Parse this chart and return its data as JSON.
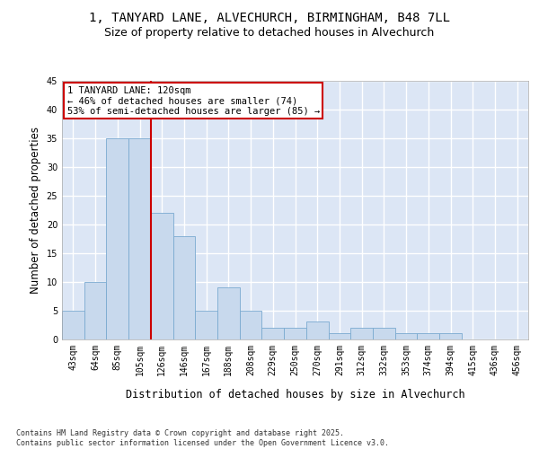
{
  "title_line1": "1, TANYARD LANE, ALVECHURCH, BIRMINGHAM, B48 7LL",
  "title_line2": "Size of property relative to detached houses in Alvechurch",
  "xlabel": "Distribution of detached houses by size in Alvechurch",
  "ylabel": "Number of detached properties",
  "categories": [
    "43sqm",
    "64sqm",
    "85sqm",
    "105sqm",
    "126sqm",
    "146sqm",
    "167sqm",
    "188sqm",
    "208sqm",
    "229sqm",
    "250sqm",
    "270sqm",
    "291sqm",
    "312sqm",
    "332sqm",
    "353sqm",
    "374sqm",
    "394sqm",
    "415sqm",
    "436sqm",
    "456sqm"
  ],
  "values": [
    5,
    10,
    35,
    35,
    22,
    18,
    5,
    9,
    5,
    2,
    2,
    3,
    1,
    2,
    2,
    1,
    1,
    1,
    0,
    0,
    0
  ],
  "bar_color": "#c8d9ed",
  "bar_edge_color": "#7aaad0",
  "background_color": "#dce6f5",
  "grid_color": "#ffffff",
  "annotation_text": "1 TANYARD LANE: 120sqm\n← 46% of detached houses are smaller (74)\n53% of semi-detached houses are larger (85) →",
  "annotation_box_color": "#ffffff",
  "annotation_box_edge": "#cc0000",
  "vline_x": 4.0,
  "vline_color": "#cc0000",
  "ylim": [
    0,
    45
  ],
  "yticks": [
    0,
    5,
    10,
    15,
    20,
    25,
    30,
    35,
    40,
    45
  ],
  "footnote": "Contains HM Land Registry data © Crown copyright and database right 2025.\nContains public sector information licensed under the Open Government Licence v3.0.",
  "title_fontsize": 10,
  "subtitle_fontsize": 9,
  "tick_fontsize": 7,
  "label_fontsize": 8.5,
  "annotation_fontsize": 7.5,
  "footnote_fontsize": 6.0
}
